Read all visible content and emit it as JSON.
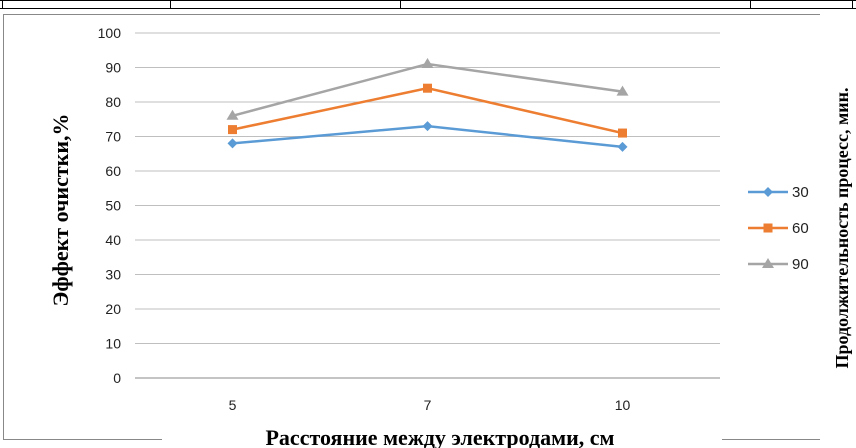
{
  "chart_data": {
    "type": "line",
    "categories": [
      "5",
      "7",
      "10"
    ],
    "series": [
      {
        "name": "30",
        "values": [
          68,
          73,
          67
        ],
        "color": "#5b9bd5",
        "marker": "diamond"
      },
      {
        "name": "60",
        "values": [
          72,
          84,
          71
        ],
        "color": "#ed7d31",
        "marker": "square"
      },
      {
        "name": "90",
        "values": [
          76,
          91,
          83
        ],
        "color": "#a5a5a5",
        "marker": "triangle"
      }
    ],
    "xlabel": "Расстояние между электродами, см",
    "ylabel": "Эффект очистки,%",
    "legend_title": "Продолжительность процесс, мин.",
    "yticks": [
      "0",
      "10",
      "20",
      "30",
      "40",
      "50",
      "60",
      "70",
      "80",
      "90",
      "100"
    ],
    "ylim": [
      0,
      100
    ],
    "grid": true,
    "legend_position": "right"
  }
}
